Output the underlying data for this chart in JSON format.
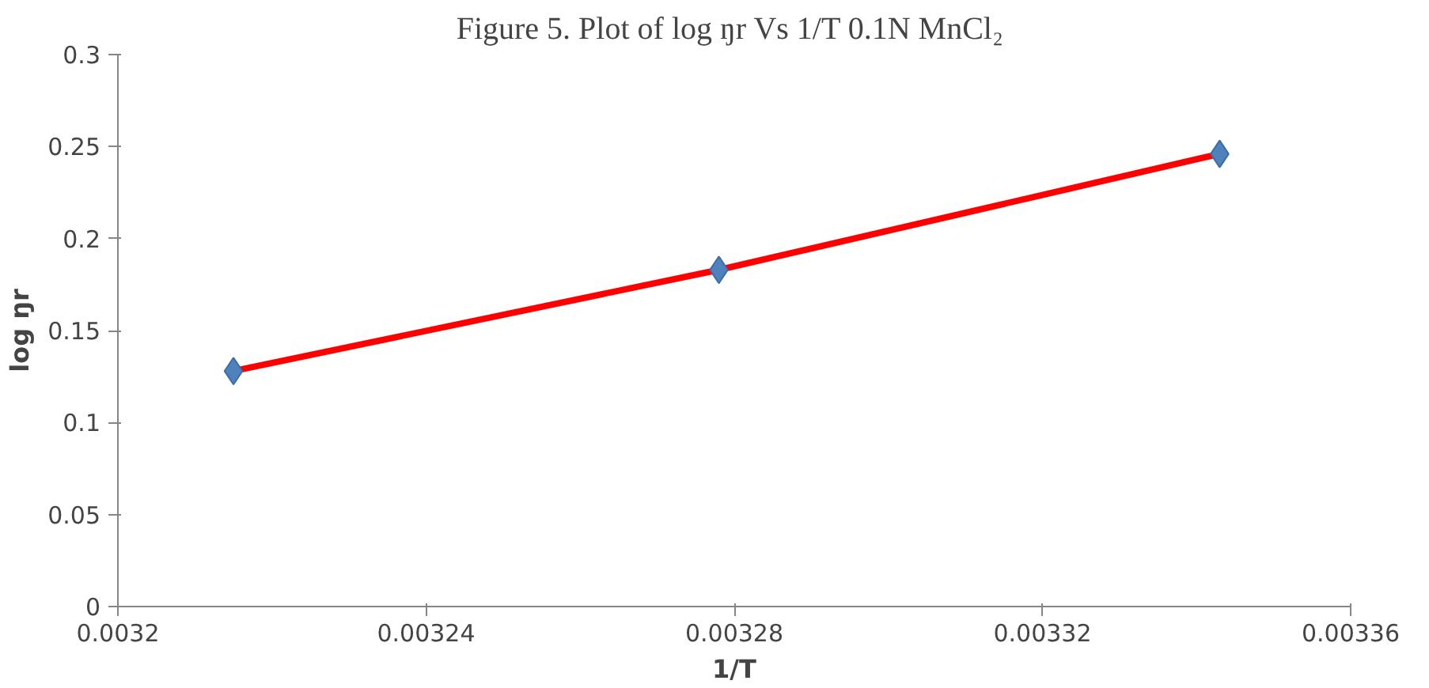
{
  "chart_data": {
    "type": "scatter",
    "title": "Figure 5. Plot of log ŋr Vs 1/T  0.1N MnCl₂",
    "xlabel": "1/T",
    "ylabel": "log ŋr",
    "x": [
      0.003215,
      0.003278,
      0.003343
    ],
    "series": [
      {
        "type": "line",
        "color": "#ff0000",
        "values": [
          0.128,
          0.183,
          0.246
        ],
        "line_style": "solid",
        "marker": "none"
      },
      {
        "color": "#4f81bd",
        "values": [
          0.128,
          0.183,
          0.246
        ],
        "marker": "diamond"
      }
    ],
    "xlim": [
      0.0032,
      0.00336
    ],
    "xticks": [
      0.0032,
      0.00324,
      0.00328,
      0.00332,
      0.00336
    ],
    "ylim": [
      0,
      0.3
    ],
    "yticks": [
      0,
      0.05,
      0.1,
      0.15,
      0.2,
      0.25,
      0.3
    ],
    "grid": false
  }
}
